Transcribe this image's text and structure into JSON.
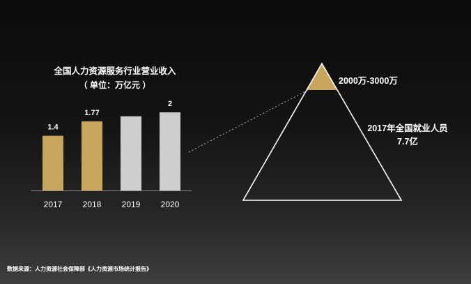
{
  "chart_data": [
    {
      "type": "bar",
      "title": "全国人力资源服务行业营业收入",
      "subtitle": "（ 单位：万亿元 ）",
      "categories": [
        "2017",
        "2018",
        "2019",
        "2020"
      ],
      "values": [
        1.4,
        1.77,
        1.9,
        2
      ],
      "data_labels": [
        "1.4",
        "1.77",
        "",
        "2"
      ],
      "highlighted": [
        true,
        true,
        false,
        false
      ],
      "ylim": [
        0,
        2.2
      ],
      "grid": false,
      "colors": {
        "highlight": "#c9a55c",
        "normal": "#d0cdd0",
        "text": "#ffffff"
      }
    },
    {
      "type": "pyramid",
      "top_label": "2000万-3000万",
      "main_label_line1": "2017年全国就业人员",
      "main_label_line2": "7.7亿",
      "colors": {
        "top_fill": "#c9a55c",
        "outline": "#ffffff"
      }
    }
  ],
  "source": "数据来源：人力资源社会保障部《人力资源市场统计报告》"
}
